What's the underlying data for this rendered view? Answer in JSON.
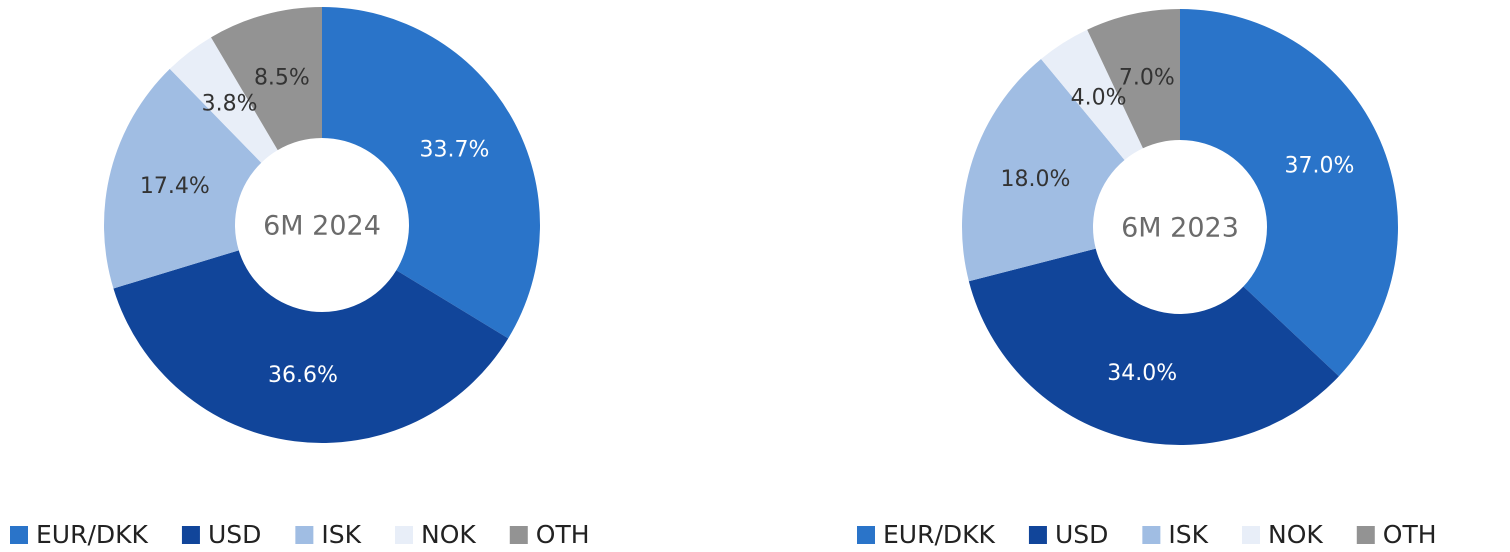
{
  "chart_data": [
    {
      "type": "pie",
      "title": "6M 2024",
      "categories": [
        "EUR/DKK",
        "USD",
        "ISK",
        "NOK",
        "OTH"
      ],
      "values": [
        33.7,
        36.6,
        17.4,
        3.8,
        8.5
      ],
      "value_labels": [
        "33.7%",
        "36.6%",
        "17.4%",
        "3.8%",
        "8.5%"
      ],
      "colors": [
        "#2a74c9",
        "#11459a",
        "#a0bde3",
        "#e8eef8",
        "#939393"
      ]
    },
    {
      "type": "pie",
      "title": "6M 2023",
      "categories": [
        "EUR/DKK",
        "USD",
        "ISK",
        "NOK",
        "OTH"
      ],
      "values": [
        37.0,
        34.0,
        18.0,
        4.0,
        7.0
      ],
      "value_labels": [
        "37.0%",
        "34.0%",
        "18.0%",
        "4.0%",
        "7.0%"
      ],
      "colors": [
        "#2a74c9",
        "#11459a",
        "#a0bde3",
        "#e8eef8",
        "#939393"
      ]
    }
  ]
}
